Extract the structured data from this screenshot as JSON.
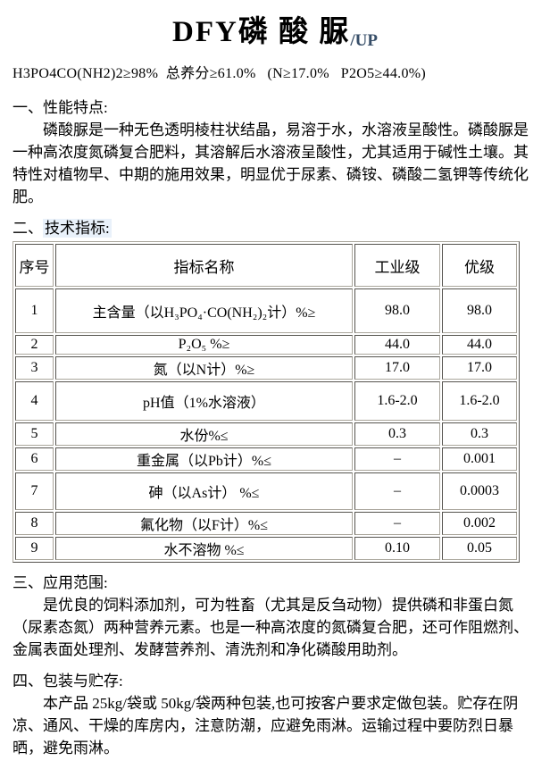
{
  "colors": {
    "heading_highlight": "#e9f1fa",
    "title_suffix": "#374e68",
    "table_border": "#aaa69c",
    "text": "#000000",
    "background": "#ffffff"
  },
  "title": {
    "main": "DFY磷 酸 脲",
    "suffix": "/UP"
  },
  "spec_line": "H3PO4CO(NH2)2≥98%  总养分≥61.0%   (N≥17.0%   P2O5≥44.0%)",
  "sec1": {
    "num": "一、",
    "name": "性能特点:",
    "body": "磷酸脲是一种无色透明棱柱状结晶，易溶于水，水溶液呈酸性。磷酸脲是一种高浓度氮磷复合肥料，其溶解后水溶液呈酸性，尤其适用于碱性土壤。其特性对植物早、中期的施用效果，明显优于尿素、磷铵、磷酸二氢钾等传统化肥。"
  },
  "sec2": {
    "num": "二、",
    "name": "技术指标:"
  },
  "table": {
    "headers": [
      "序号",
      "指标名称",
      "工业级",
      "优级"
    ],
    "rows": [
      [
        "1",
        "主含量（以H₃PO₄·CO(NH₂)₂计）%≥",
        "98.0",
        "98.0"
      ],
      [
        "2",
        "P₂O₅  %≥",
        "44.0",
        "44.0"
      ],
      [
        "3",
        "氮（以N计）%≥",
        "17.0",
        "17.0"
      ],
      [
        "4",
        "pH值（1%水溶液）",
        "1.6-2.0",
        "1.6-2.0"
      ],
      [
        "5",
        "水份%≤",
        "0.3",
        "0.3"
      ],
      [
        "6",
        "重金属（以Pb计）%≤",
        "–",
        "0.001"
      ],
      [
        "7",
        "砷（以As计）  %≤",
        "–",
        "0.0003"
      ],
      [
        "8",
        "氟化物（以F计）%≤",
        "–",
        "0.002"
      ],
      [
        "9",
        "水不溶物  %≤",
        "0.10",
        "0.05"
      ]
    ]
  },
  "sec3": {
    "num": "三、",
    "name": "应用范围:",
    "body": "是优良的饲料添加剂，可为牲畜（尤其是反刍动物）提供磷和非蛋白氮（尿素态氮）两种营养元素。也是一种高浓度的氮磷复合肥，还可作阻燃剂、金属表面处理剂、发酵营养剂、清洗剂和净化磷酸用助剂。"
  },
  "sec4": {
    "num": "四、",
    "name": "包装与贮存:",
    "body": "本产品 25kg/袋或 50kg/袋两种包装,也可按客户要求定做包装。贮存在阴凉、通风、干燥的库房内，注意防潮，应避免雨淋。运输过程中要防烈日暴晒，避免雨淋。"
  }
}
